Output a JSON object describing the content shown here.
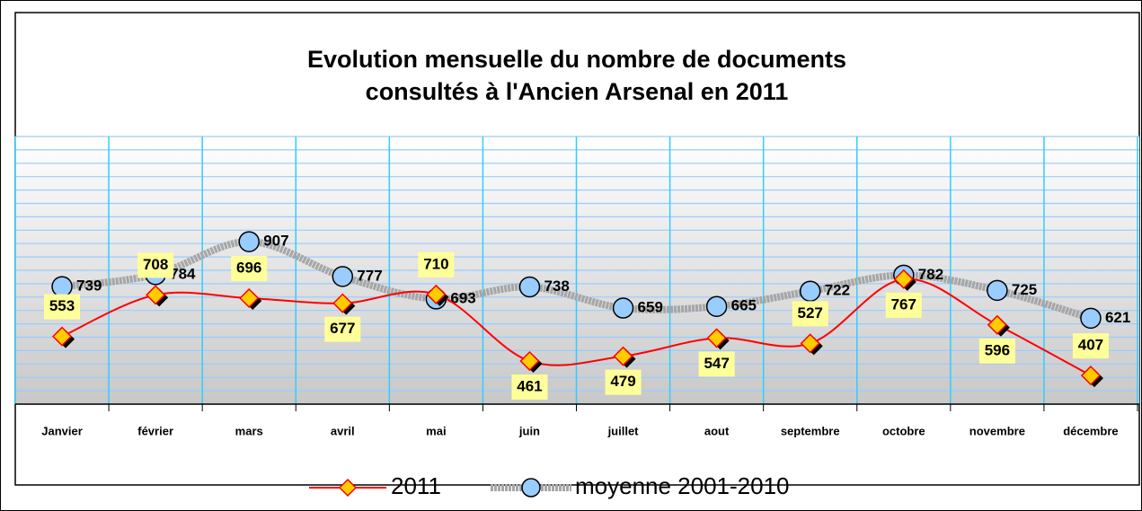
{
  "chart_data": {
    "type": "line",
    "title": [
      "Evolution mensuelle du nombre de documents",
      "consultés à l'Ancien Arsenal en 2011"
    ],
    "categories": [
      "Janvier",
      "février",
      "mars",
      "avril",
      "mai",
      "juin",
      "juillet",
      "aout",
      "septembre",
      "octobre",
      "novembre",
      "décembre"
    ],
    "series": [
      {
        "name": "2011",
        "color": "#ff0000",
        "values": [
          553,
          708,
          696,
          677,
          710,
          461,
          479,
          547,
          527,
          767,
          596,
          407
        ]
      },
      {
        "name": "moyenne 2001-2010",
        "color": "#a6a6a6",
        "values": [
          739,
          784,
          907,
          777,
          693,
          738,
          659,
          665,
          722,
          782,
          725,
          621
        ]
      }
    ],
    "ylim": [
      300,
      1300
    ],
    "yticks": [
      300,
      350,
      400,
      450,
      500,
      550,
      600,
      650,
      700,
      750,
      800,
      850,
      900,
      950,
      1000,
      1050,
      1100,
      1150,
      1200,
      1250,
      1300
    ],
    "grid": true
  }
}
